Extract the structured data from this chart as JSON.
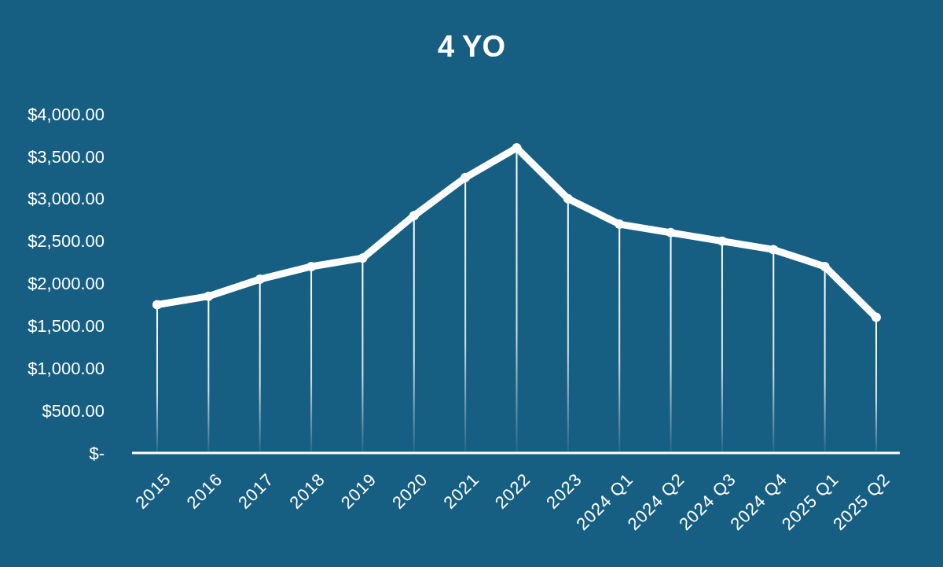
{
  "chart_data": {
    "type": "line",
    "title": "4 YO",
    "categories": [
      "2015",
      "2016",
      "2017",
      "2018",
      "2019",
      "2020",
      "2021",
      "2022",
      "2023",
      "2024 Q1",
      "2024 Q2",
      "2024 Q3",
      "2024 Q4",
      "2025 Q1",
      "2025 Q2"
    ],
    "series": [
      {
        "color": "#ffffff",
        "values": [
          1750,
          1850,
          2050,
          2200,
          2300,
          2800,
          3250,
          3600,
          3000,
          2700,
          2600,
          2500,
          2400,
          2200,
          1600
        ]
      },
      {
        "type": "lollipop",
        "marker": "circle",
        "color": "#ffffff",
        "values": [
          1750,
          1850,
          2050,
          2200,
          2300,
          2800,
          3250,
          3600,
          3000,
          2700,
          2600,
          2500,
          2400,
          2200,
          1600
        ]
      }
    ],
    "ylim": [
      0,
      4000
    ],
    "yticks": [
      {
        "value": 0,
        "label": "$-"
      },
      {
        "value": 500,
        "label": "$500.00"
      },
      {
        "value": 1000,
        "label": "$1,000.00"
      },
      {
        "value": 1500,
        "label": "$1,500.00"
      },
      {
        "value": 2000,
        "label": "$2,000.00"
      },
      {
        "value": 2500,
        "label": "$2,500.00"
      },
      {
        "value": 3000,
        "label": "$3,000.00"
      },
      {
        "value": 3500,
        "label": "$3,500.00"
      },
      {
        "value": 4000,
        "label": "$4,000.00"
      }
    ],
    "grid": false,
    "marker": "none",
    "line_style": "solid"
  }
}
